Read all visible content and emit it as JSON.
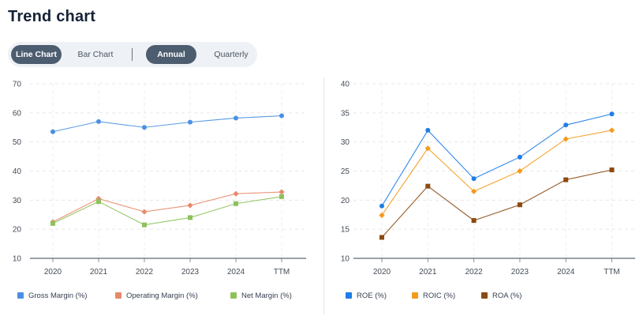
{
  "page": {
    "title": "Trend chart"
  },
  "toggles": {
    "chart_type": [
      "Line Chart",
      "Bar Chart"
    ],
    "period": [
      "Annual",
      "Quarterly"
    ],
    "active_chart_type": "Line Chart",
    "active_period": "Annual"
  },
  "colors": {
    "gross_margin": "#4a90e2",
    "operating_margin": "#e8896a",
    "net_margin": "#8dc25a",
    "roe": "#1e7de6",
    "roic": "#f59a1b",
    "roa": "#8b4a12",
    "active_pill": "#4d5d70"
  },
  "chart_data": [
    {
      "type": "line",
      "categories": [
        "2020",
        "2021",
        "2022",
        "2023",
        "2024",
        "TTM"
      ],
      "yticks": [
        10,
        20,
        30,
        40,
        50,
        60,
        70
      ],
      "ylim": [
        10,
        70
      ],
      "grid": true,
      "legend_position": "bottom",
      "series": [
        {
          "name": "Gross Margin (%)",
          "values": [
            53.5,
            57.0,
            55.0,
            56.8,
            58.2,
            59.0
          ],
          "marker": "circle",
          "color": "#4a90e2"
        },
        {
          "name": "Operating Margin (%)",
          "values": [
            22.5,
            30.5,
            26.0,
            28.2,
            32.2,
            32.8
          ],
          "marker": "diamond",
          "color": "#e8896a"
        },
        {
          "name": "Net Margin (%)",
          "values": [
            22.0,
            29.5,
            21.5,
            24.0,
            28.8,
            31.2
          ],
          "marker": "square",
          "color": "#8dc25a"
        }
      ]
    },
    {
      "type": "line",
      "categories": [
        "2020",
        "2021",
        "2022",
        "2023",
        "2024",
        "TTM"
      ],
      "yticks": [
        10,
        15,
        20,
        25,
        30,
        35,
        40
      ],
      "ylim": [
        10,
        40
      ],
      "grid": true,
      "legend_position": "bottom",
      "series": [
        {
          "name": "ROE (%)",
          "values": [
            19.0,
            32.0,
            23.7,
            27.4,
            32.9,
            34.8
          ],
          "marker": "circle",
          "color": "#1e7de6"
        },
        {
          "name": "ROIC (%)",
          "values": [
            17.4,
            28.9,
            21.5,
            25.0,
            30.5,
            32.0
          ],
          "marker": "diamond",
          "color": "#f59a1b"
        },
        {
          "name": "ROA (%)",
          "values": [
            13.6,
            22.4,
            16.5,
            19.2,
            23.5,
            25.2
          ],
          "marker": "square",
          "color": "#8b4a12"
        }
      ]
    }
  ]
}
